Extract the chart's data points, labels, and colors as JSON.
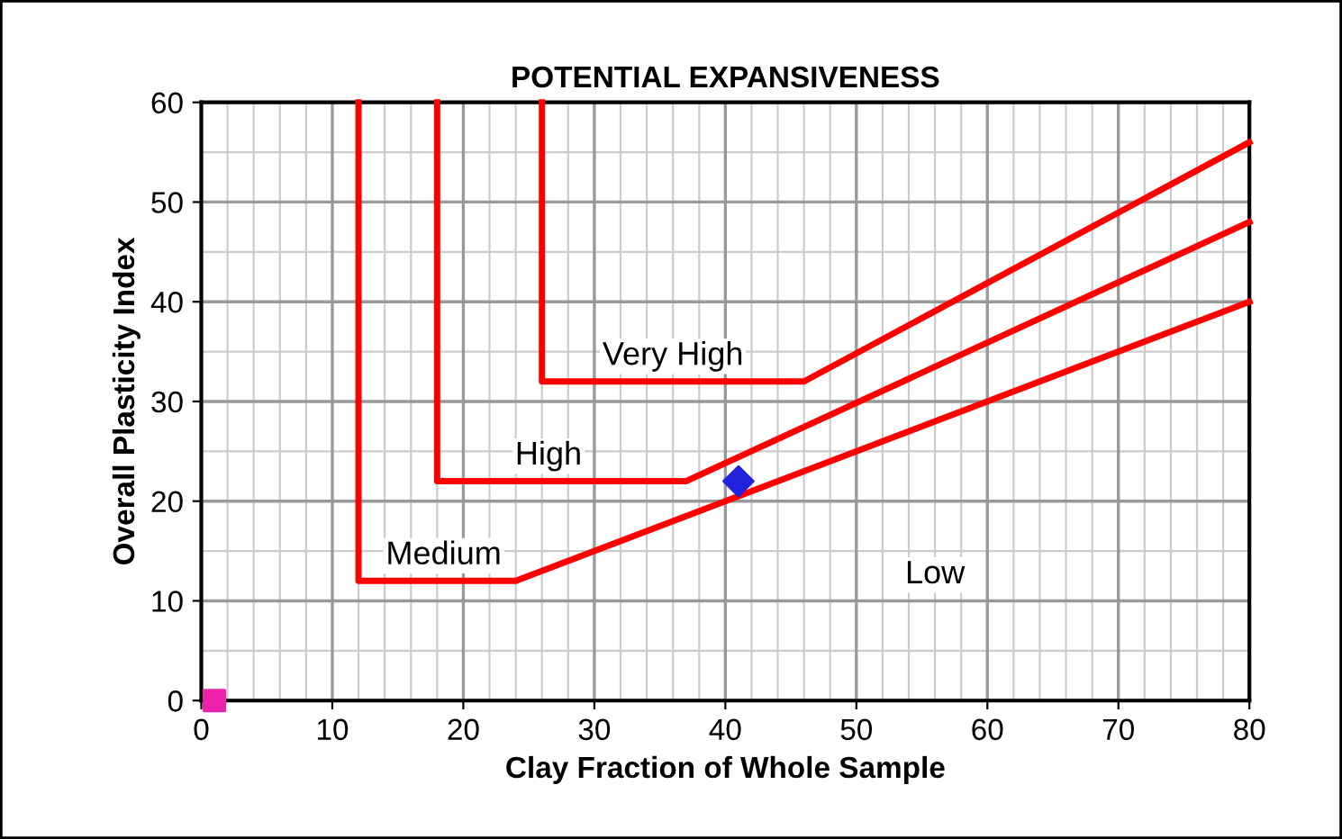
{
  "chart_data": {
    "type": "line",
    "title": "POTENTIAL EXPANSIVENESS",
    "xlabel": "Clay Fraction of Whole Sample",
    "ylabel": "Overall Plasticity Index",
    "series": [
      {
        "color": "#ff0000",
        "x": [
          12,
          12,
          24,
          80
        ],
        "values": [
          60,
          12,
          12,
          40
        ],
        "marker": "none"
      },
      {
        "color": "#ff0000",
        "x": [
          18,
          18,
          37,
          80
        ],
        "values": [
          60,
          22,
          22,
          48
        ],
        "marker": "none"
      },
      {
        "color": "#ff0000",
        "x": [
          26,
          26,
          46,
          80
        ],
        "values": [
          60,
          32,
          32,
          56
        ],
        "marker": "none"
      },
      {
        "type": "scatter",
        "color": "#2222dd",
        "x": [
          41
        ],
        "values": [
          22
        ],
        "marker": "diamond"
      },
      {
        "type": "scatter",
        "color": "#ee22aa",
        "x": [
          1
        ],
        "values": [
          0
        ],
        "marker": "square"
      }
    ],
    "annotations": [
      {
        "text": "Very High",
        "x": 36,
        "y": 32
      },
      {
        "text": "High",
        "x": 26.5,
        "y": 22
      },
      {
        "text": "Medium",
        "x": 18.5,
        "y": 12
      },
      "Low"
    ],
    "xlim": [
      0,
      80
    ],
    "xticks": [
      0,
      10,
      20,
      30,
      40,
      50,
      60,
      70,
      80
    ],
    "ylim": [
      0,
      60
    ],
    "yticks": [
      0,
      10,
      20,
      30,
      40,
      50,
      60
    ],
    "grid": true,
    "legend": false
  }
}
